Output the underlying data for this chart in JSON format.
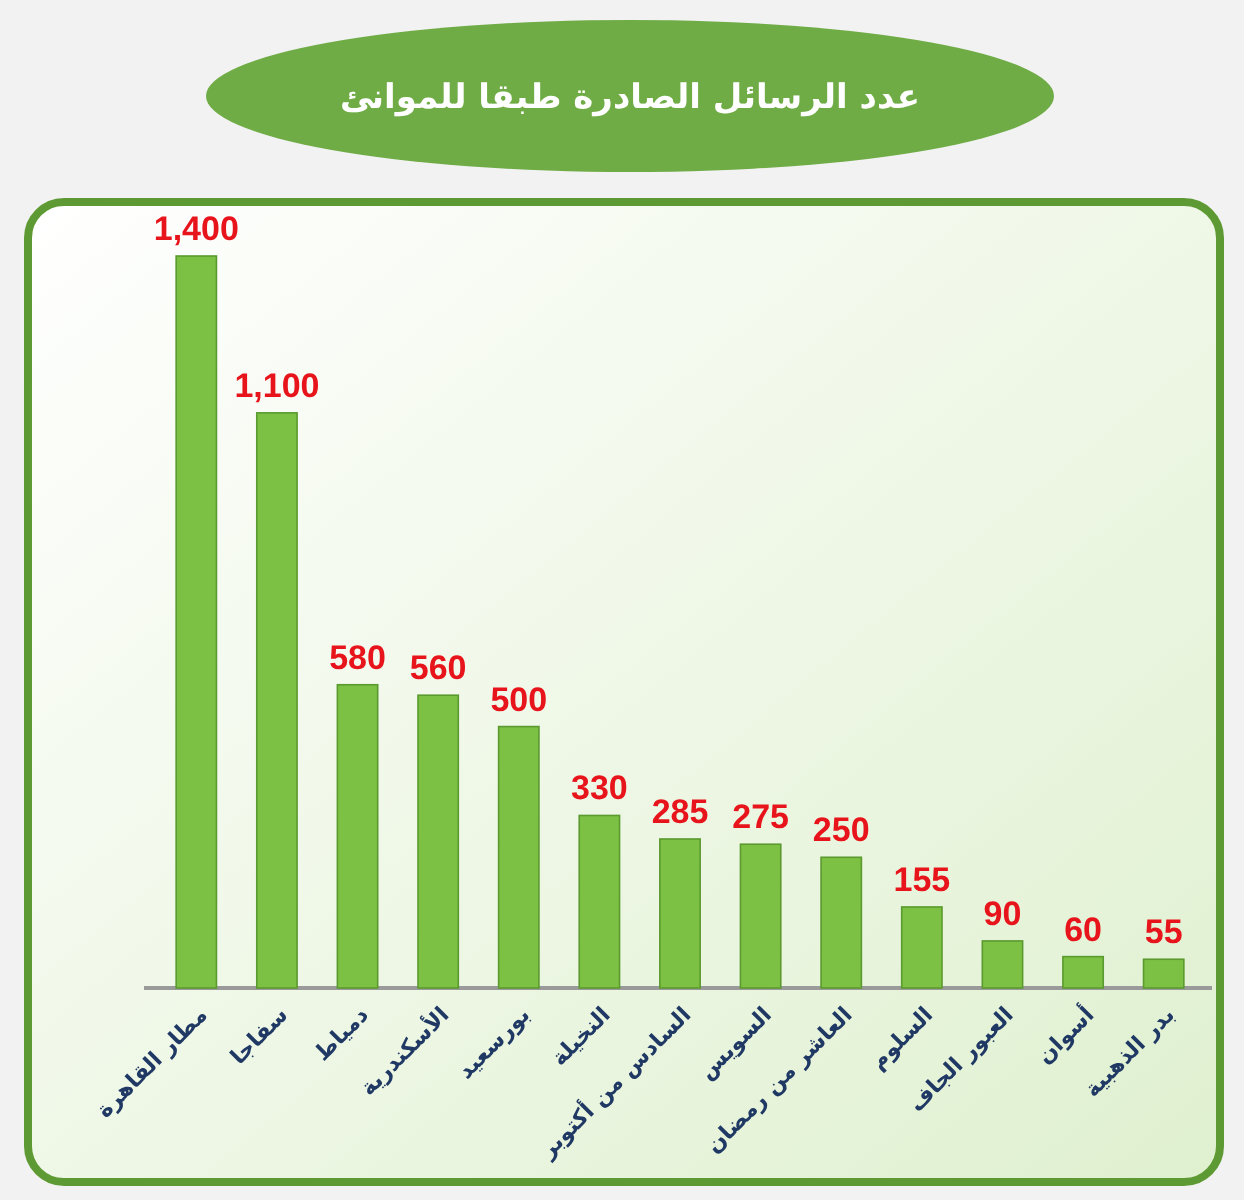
{
  "chart_data": {
    "type": "bar",
    "title": "عدد الرسائل الصادرة طبقا للموانئ",
    "categories": [
      "مطار القاهرة",
      "سفاجا",
      "دمياط",
      "الأسكندرية",
      "بورسعيد",
      "النخيلة",
      "السادس من أكتوبر",
      "السويس",
      "العاشر من رمضان",
      "السلوم",
      "العبور الجاف",
      "أسوان",
      "بدر الذهبية"
    ],
    "values": [
      1400,
      1100,
      580,
      560,
      500,
      330,
      285,
      275,
      250,
      155,
      90,
      60,
      55
    ],
    "value_labels": [
      "1,400",
      "1,100",
      "580",
      "560",
      "500",
      "330",
      "285",
      "275",
      "250",
      "155",
      "90",
      "60",
      "55"
    ],
    "color": "#7cc144"
  }
}
